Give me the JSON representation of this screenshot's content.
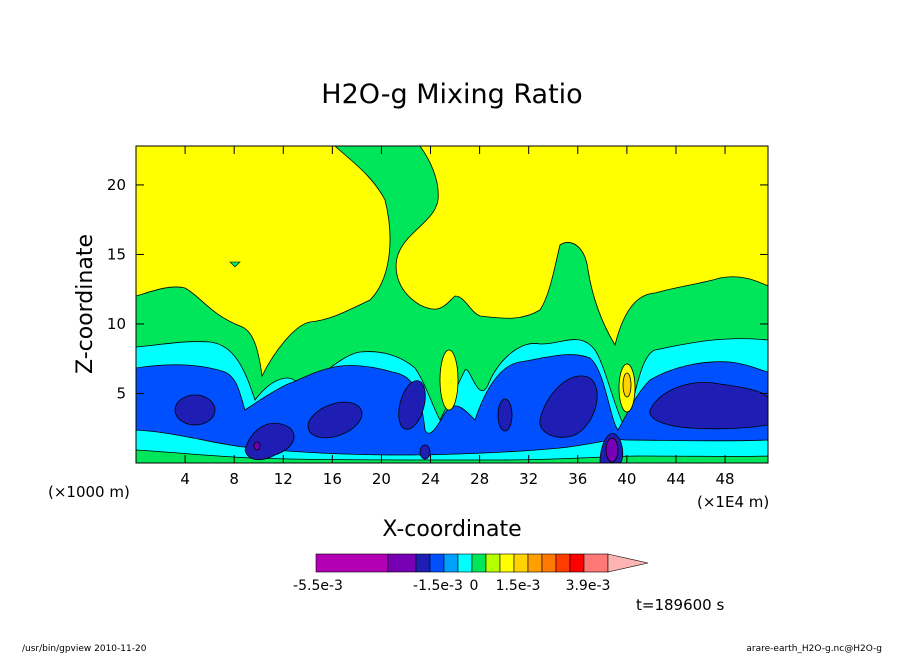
{
  "chart_data": {
    "type": "heatmap",
    "title": "H2O-g Mixing Ratio",
    "xlabel": "X-coordinate",
    "ylabel": "Z-coordinate",
    "x_unit_left": "(×1000 m)",
    "x_unit_right": "(×1E4 m)",
    "xlim": [
      0,
      51.5
    ],
    "ylim": [
      0,
      22.8
    ],
    "x_ticks": [
      "4",
      "8",
      "12",
      "16",
      "20",
      "24",
      "28",
      "32",
      "36",
      "40",
      "44",
      "48"
    ],
    "x_tick_values": [
      4,
      8,
      12,
      16,
      20,
      24,
      28,
      32,
      36,
      40,
      44,
      48
    ],
    "y_ticks": [
      "5",
      "10",
      "15",
      "20"
    ],
    "y_tick_values": [
      5,
      10,
      15,
      20
    ],
    "grid": false,
    "colorbar": {
      "labels": [
        "-5.5e-3",
        "-1.5e-3",
        "0",
        "1.5e-3",
        "3.9e-3"
      ],
      "colors": [
        "#b400b4",
        "#7800b4",
        "#1e1eb4",
        "#0050ff",
        "#00a0ff",
        "#00ffff",
        "#00e65a",
        "#b4ff00",
        "#ffff00",
        "#ffd200",
        "#ffa000",
        "#ff7800",
        "#ff3c00",
        "#ff0000",
        "#ff7878",
        "#ffb4b4"
      ]
    },
    "time_label": "t=189600 s"
  },
  "footer": {
    "left": "/usr/bin/gpview   2010-11-20",
    "right": "arare-earth_H2O-g.nc@H2O-g"
  }
}
